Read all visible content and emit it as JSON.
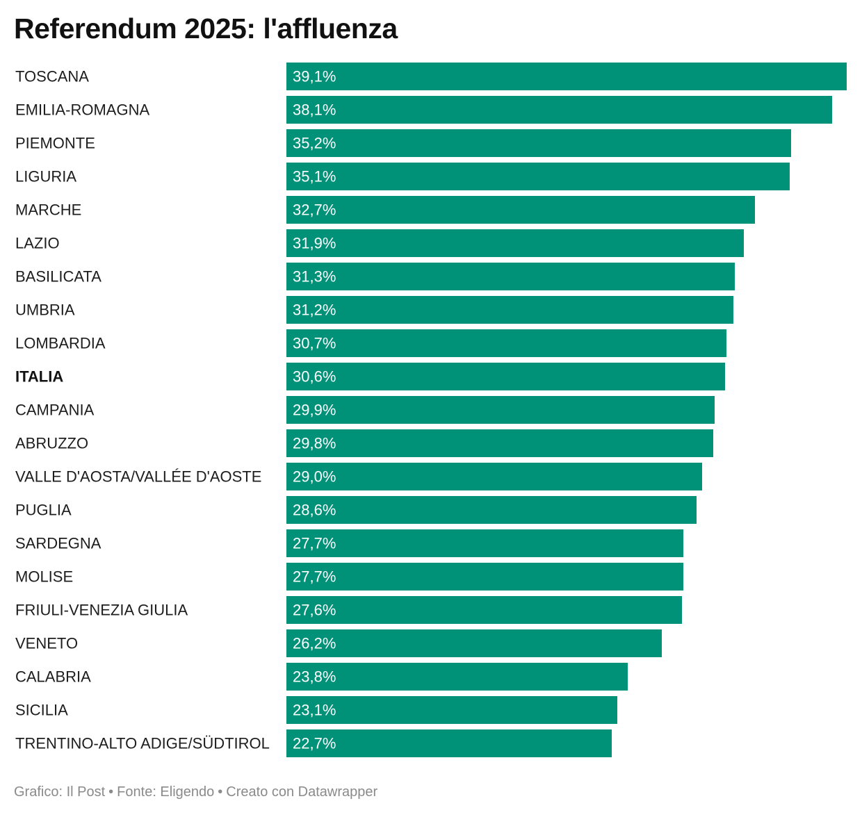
{
  "title": "Referendum 2025: l'affluenza",
  "footer": {
    "credit": "Grafico: Il Post",
    "source": "Fonte: Eligendo",
    "tool": "Creato con Datawrapper",
    "separator": "•"
  },
  "colors": {
    "bar": "#009279",
    "label": "#1d1d1d",
    "value_text": "#ffffff",
    "footer": "#8a8a8a"
  },
  "chart_data": {
    "type": "bar",
    "orientation": "horizontal",
    "title": "Referendum 2025: l'affluenza",
    "grid": false,
    "xlim": [
      0,
      39.1
    ],
    "highlight": "ITALIA",
    "categories": [
      "TOSCANA",
      "EMILIA-ROMAGNA",
      "PIEMONTE",
      "LIGURIA",
      "MARCHE",
      "LAZIO",
      "BASILICATA",
      "UMBRIA",
      "LOMBARDIA",
      "ITALIA",
      "CAMPANIA",
      "ABRUZZO",
      "VALLE D'AOSTA/VALLÉE D'AOSTE",
      "PUGLIA",
      "SARDEGNA",
      "MOLISE",
      "FRIULI-VENEZIA GIULIA",
      "VENETO",
      "CALABRIA",
      "SICILIA",
      "TRENTINO-ALTO ADIGE/SÜDTIROL"
    ],
    "values": [
      39.1,
      38.1,
      35.2,
      35.1,
      32.7,
      31.9,
      31.3,
      31.2,
      30.7,
      30.6,
      29.9,
      29.8,
      29.0,
      28.6,
      27.7,
      27.7,
      27.6,
      26.2,
      23.8,
      23.1,
      22.7
    ],
    "data_labels": [
      "39,1%",
      "38,1%",
      "35,2%",
      "35,1%",
      "32,7%",
      "31,9%",
      "31,3%",
      "31,2%",
      "30,7%",
      "30,6%",
      "29,9%",
      "29,8%",
      "29,0%",
      "28,6%",
      "27,7%",
      "27,7%",
      "27,6%",
      "26,2%",
      "23,8%",
      "23,1%",
      "22,7%"
    ]
  }
}
